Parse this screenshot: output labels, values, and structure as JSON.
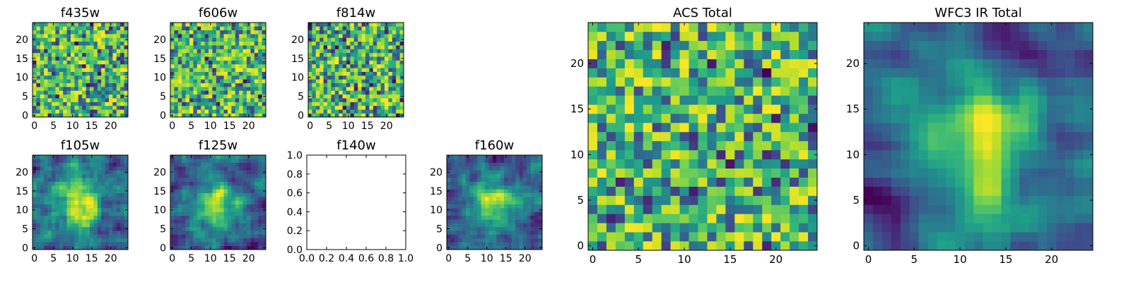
{
  "chart_data": [
    {
      "type": "heatmap",
      "title": "f435w",
      "xticks": [
        0,
        5,
        10,
        15,
        20
      ],
      "yticks": [
        0,
        5,
        10,
        15,
        20
      ],
      "xlim": [
        -0.5,
        24.5
      ],
      "ylim": [
        -0.5,
        24.5
      ],
      "grid_size": 25,
      "colormap": "viridis",
      "pattern": "noise"
    },
    {
      "type": "heatmap",
      "title": "f606w",
      "xticks": [
        0,
        5,
        10,
        15,
        20
      ],
      "yticks": [
        0,
        5,
        10,
        15,
        20
      ],
      "xlim": [
        -0.5,
        24.5
      ],
      "ylim": [
        -0.5,
        24.5
      ],
      "grid_size": 25,
      "colormap": "viridis",
      "pattern": "noise"
    },
    {
      "type": "heatmap",
      "title": "f814w",
      "xticks": [
        0,
        5,
        10,
        15,
        20
      ],
      "yticks": [
        0,
        5,
        10,
        15,
        20
      ],
      "xlim": [
        -0.5,
        24.5
      ],
      "ylim": [
        -0.5,
        24.5
      ],
      "grid_size": 25,
      "colormap": "viridis",
      "pattern": "noise"
    },
    {
      "type": "heatmap",
      "title": "f105w",
      "xticks": [
        0,
        5,
        10,
        15,
        20
      ],
      "yticks": [
        0,
        5,
        10,
        15,
        20
      ],
      "xlim": [
        -0.5,
        24.5
      ],
      "ylim": [
        -0.5,
        24.5
      ],
      "grid_size": 25,
      "colormap": "viridis",
      "pattern": "source"
    },
    {
      "type": "heatmap",
      "title": "f125w",
      "xticks": [
        0,
        5,
        10,
        15,
        20
      ],
      "yticks": [
        0,
        5,
        10,
        15,
        20
      ],
      "xlim": [
        -0.5,
        24.5
      ],
      "ylim": [
        -0.5,
        24.5
      ],
      "grid_size": 25,
      "colormap": "viridis",
      "pattern": "source"
    },
    {
      "type": "empty",
      "title": "f140w",
      "xticks": [
        "0.0",
        "0.2",
        "0.4",
        "0.6",
        "0.8",
        "1.0"
      ],
      "yticks": [
        "0.0",
        "0.2",
        "0.4",
        "0.6",
        "0.8",
        "1.0"
      ],
      "xlim": [
        0,
        1
      ],
      "ylim": [
        0,
        1
      ]
    },
    {
      "type": "heatmap",
      "title": "f160w",
      "xticks": [
        0,
        5,
        10,
        15,
        20
      ],
      "yticks": [
        0,
        5,
        10,
        15,
        20
      ],
      "xlim": [
        -0.5,
        24.5
      ],
      "ylim": [
        -0.5,
        24.5
      ],
      "grid_size": 25,
      "colormap": "viridis",
      "pattern": "source"
    },
    {
      "type": "heatmap",
      "title": "ACS Total",
      "xticks": [
        0,
        5,
        10,
        15,
        20
      ],
      "yticks": [
        0,
        5,
        10,
        15,
        20
      ],
      "xlim": [
        -0.5,
        24.5
      ],
      "ylim": [
        -0.5,
        24.5
      ],
      "grid_size": 25,
      "colormap": "viridis",
      "pattern": "noise"
    },
    {
      "type": "heatmap",
      "title": "WFC3 IR Total",
      "xticks": [
        0,
        5,
        10,
        15,
        20
      ],
      "yticks": [
        0,
        5,
        10,
        15,
        20
      ],
      "xlim": [
        -0.5,
        24.5
      ],
      "ylim": [
        -0.5,
        24.5
      ],
      "grid_size": 25,
      "colormap": "viridis",
      "pattern": "source_smooth"
    }
  ]
}
